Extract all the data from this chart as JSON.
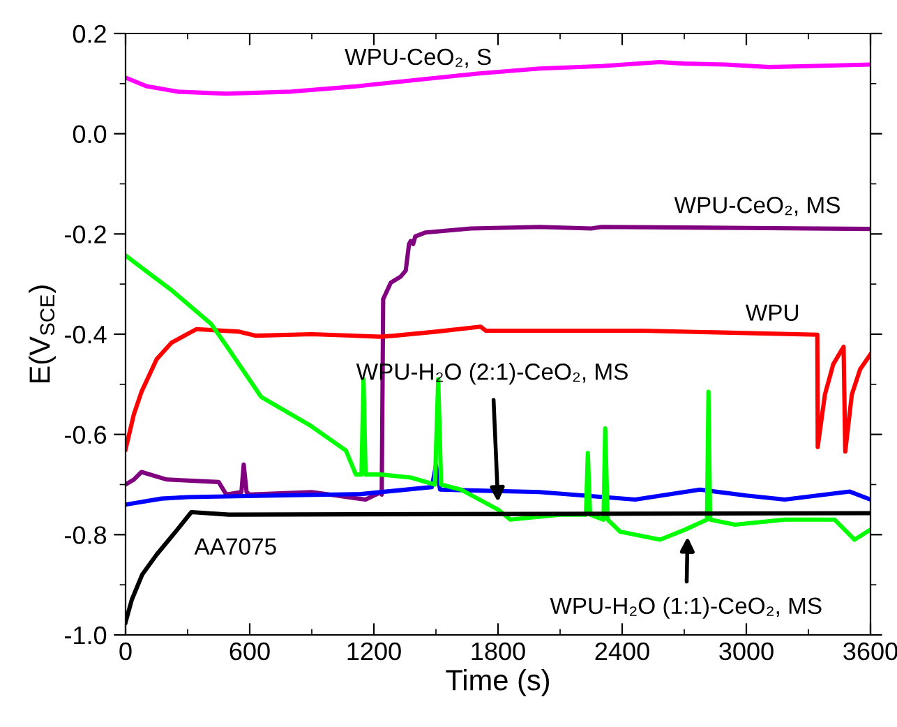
{
  "chart_data": {
    "type": "line",
    "xlabel": "Time (s)",
    "ylabel": "E(V$_{SCE}$)",
    "xlim": [
      0,
      3600
    ],
    "ylim": [
      -1.0,
      0.2
    ],
    "xticks": [
      0,
      600,
      1200,
      1800,
      2400,
      3000,
      3600
    ],
    "yticks": [
      {
        "value": -1.0,
        "label": "-1.0"
      },
      -0.8,
      -0.6,
      -0.4,
      -0.2,
      {
        "value": 0.0,
        "label": "0.0"
      },
      0.2
    ],
    "grid": false,
    "legend": false,
    "marker": "none",
    "line_style": "solid",
    "series": [
      {
        "color": "#ff00ff",
        "x": [
          0,
          100,
          250,
          485,
          800,
          1100,
          1375,
          1700,
          2000,
          2300,
          2580,
          2700,
          2900,
          3110,
          3300,
          3600
        ],
        "values": [
          0.112,
          0.095,
          0.084,
          0.08,
          0.084,
          0.094,
          0.106,
          0.12,
          0.13,
          0.135,
          0.143,
          0.14,
          0.138,
          0.133,
          0.135,
          0.138
        ]
      },
      {
        "color": "#800080",
        "x": [
          0,
          40,
          77,
          200,
          450,
          487,
          560,
          571,
          585,
          600,
          900,
          1160,
          1230,
          1238,
          1245,
          1282,
          1330,
          1354,
          1370,
          1378,
          1390,
          1400,
          1450,
          1668,
          2000,
          2250,
          2300,
          3000,
          3600
        ],
        "values": [
          -0.7,
          -0.69,
          -0.675,
          -0.69,
          -0.695,
          -0.72,
          -0.715,
          -0.66,
          -0.715,
          -0.72,
          -0.715,
          -0.73,
          -0.716,
          -0.72,
          -0.33,
          -0.297,
          -0.285,
          -0.273,
          -0.22,
          -0.214,
          -0.22,
          -0.205,
          -0.197,
          -0.189,
          -0.186,
          -0.189,
          -0.186,
          -0.188,
          -0.19
        ]
      },
      {
        "color": "#ff0000",
        "x": [
          0,
          40,
          77,
          150,
          222,
          342,
          550,
          631,
          900,
          1234,
          1300,
          1500,
          1716,
          1740,
          2500,
          3343,
          3345,
          3380,
          3420,
          3470,
          3478,
          3510,
          3550,
          3600
        ],
        "values": [
          -0.63,
          -0.56,
          -0.515,
          -0.45,
          -0.417,
          -0.39,
          -0.395,
          -0.403,
          -0.4,
          -0.405,
          -0.403,
          -0.395,
          -0.385,
          -0.393,
          -0.393,
          -0.401,
          -0.625,
          -0.52,
          -0.46,
          -0.425,
          -0.634,
          -0.52,
          -0.47,
          -0.44
        ]
      },
      {
        "color": "#0000ff",
        "x": [
          0,
          174,
          300,
          720,
          1138,
          1480,
          1500,
          1520,
          1700,
          2000,
          2463,
          2776,
          3000,
          3186,
          3500,
          3600
        ],
        "values": [
          -0.74,
          -0.728,
          -0.725,
          -0.722,
          -0.719,
          -0.705,
          -0.662,
          -0.71,
          -0.712,
          -0.715,
          -0.73,
          -0.71,
          -0.722,
          -0.73,
          -0.714,
          -0.73
        ]
      },
      {
        "color": "#00ff00",
        "x": [
          0,
          125,
          222,
          415,
          499,
          655,
          896,
          1065,
          1113,
          1140,
          1150,
          1160,
          1234,
          1379,
          1495,
          1511,
          1525,
          1620,
          1800,
          1860,
          2100,
          2225,
          2234,
          2245,
          2310,
          2318,
          2330,
          2390,
          2583,
          2704,
          2810,
          2817,
          2825,
          2945,
          3186,
          3427,
          3523,
          3600
        ],
        "values": [
          -0.243,
          -0.282,
          -0.312,
          -0.38,
          -0.43,
          -0.525,
          -0.583,
          -0.632,
          -0.68,
          -0.68,
          -0.49,
          -0.68,
          -0.68,
          -0.686,
          -0.7,
          -0.49,
          -0.7,
          -0.71,
          -0.75,
          -0.77,
          -0.76,
          -0.76,
          -0.637,
          -0.76,
          -0.77,
          -0.588,
          -0.77,
          -0.794,
          -0.81,
          -0.79,
          -0.77,
          -0.515,
          -0.77,
          -0.78,
          -0.77,
          -0.77,
          -0.81,
          -0.79
        ]
      },
      {
        "color": "#000000",
        "x": [
          0,
          30,
          80,
          150,
          250,
          318,
          500,
          3600
        ],
        "values": [
          -0.975,
          -0.93,
          -0.88,
          -0.84,
          -0.79,
          -0.755,
          -0.76,
          -0.757
        ]
      }
    ],
    "annotations": [
      {
        "text": "WPU-CeO₂, S",
        "x": 1300,
        "y": 0.102
      },
      {
        "text": "WPU-CeO₂, MS",
        "x": 3000,
        "y": -0.188
      },
      {
        "text": "WPU",
        "x": 3100,
        "y": -0.4
      },
      {
        "text": "WPU-H₂O (2:1)-CeO₂, MS",
        "x": 1800,
        "y": -0.735
      },
      {
        "text": "WPU-H₂O (1:1)-CeO₂, MS",
        "x": 2716,
        "y": -0.804
      },
      {
        "text": "AA7075",
        "x": 350,
        "y": -0.758
      }
    ]
  }
}
